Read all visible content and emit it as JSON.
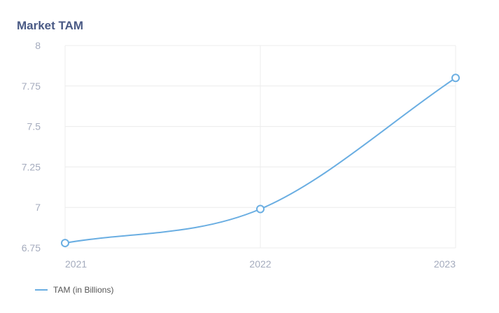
{
  "chart_data": {
    "type": "line",
    "title": "Market TAM",
    "xlabel": "",
    "ylabel": "",
    "categories": [
      "2021",
      "2022",
      "2023"
    ],
    "series": [
      {
        "name": "TAM (in Billions)",
        "values": [
          6.78,
          6.99,
          7.8
        ]
      }
    ],
    "ylim": [
      6.75,
      8
    ],
    "yticks": [
      "6.75",
      "7",
      "7.25",
      "7.5",
      "7.75",
      "8"
    ],
    "grid": true,
    "legend": "bottom-left",
    "colors": {
      "series": "#6aaee2",
      "title": "#4a5a85",
      "tick": "#a4abbd",
      "grid": "#ececec",
      "legend_text": "#555555"
    }
  }
}
